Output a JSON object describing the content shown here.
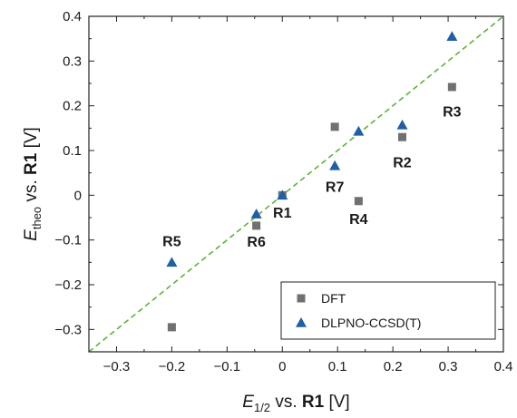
{
  "chart_data": {
    "type": "scatter",
    "title": "",
    "xlabel": {
      "main": "E",
      "sub": "1/2",
      "mid": " vs. ",
      "bold": "R1",
      "unit": " [V]"
    },
    "ylabel": {
      "main": "E",
      "sub": "theo",
      "mid": " vs. ",
      "bold": "R1",
      "unit": " [V]"
    },
    "xlim": [
      -0.35,
      0.4
    ],
    "ylim": [
      -0.35,
      0.4
    ],
    "x_ticks": [
      -0.3,
      -0.2,
      -0.1,
      0,
      0.1,
      0.2,
      0.3,
      0.4
    ],
    "x_tick_labels": [
      "−0.3",
      "−0.2",
      "−0.1",
      "0",
      "0.1",
      "0.2",
      "0.3",
      "0.4"
    ],
    "y_ticks": [
      -0.3,
      -0.2,
      -0.1,
      0,
      0.1,
      0.2,
      0.3,
      0.4
    ],
    "y_tick_labels": [
      "−0.3",
      "−0.2",
      "−0.1",
      "0",
      "0.1",
      "0.2",
      "0.3",
      "0.4"
    ],
    "grid": false,
    "legend_position": "bottom-right",
    "reference_line": {
      "from": [
        -0.35,
        -0.35
      ],
      "to": [
        0.4,
        0.4
      ],
      "color": "#5fb236",
      "style": "dashed"
    },
    "series": [
      {
        "name": "DFT",
        "marker": "square",
        "color": "#707070",
        "points": [
          {
            "x": 0,
            "y": 0
          },
          {
            "x": 0.217,
            "y": 0.13
          },
          {
            "x": 0.307,
            "y": 0.242
          },
          {
            "x": 0.138,
            "y": -0.013
          },
          {
            "x": -0.2,
            "y": -0.295
          },
          {
            "x": -0.047,
            "y": -0.068
          },
          {
            "x": 0.095,
            "y": 0.153
          }
        ]
      },
      {
        "name": "DLPNO-CCSD(T)",
        "marker": "triangle",
        "color": "#1f5fa8",
        "points": [
          {
            "x": 0,
            "y": 0
          },
          {
            "x": 0.217,
            "y": 0.157
          },
          {
            "x": 0.307,
            "y": 0.355
          },
          {
            "x": 0.138,
            "y": 0.143
          },
          {
            "x": -0.2,
            "y": -0.15
          },
          {
            "x": -0.047,
            "y": -0.042
          },
          {
            "x": 0.095,
            "y": 0.066
          }
        ]
      }
    ],
    "point_labels": [
      {
        "text": "R1",
        "x": 0,
        "y": -0.038
      },
      {
        "text": "R2",
        "x": 0.217,
        "y": 0.075
      },
      {
        "text": "R3",
        "x": 0.307,
        "y": 0.188
      },
      {
        "text": "R4",
        "x": 0.138,
        "y": -0.052
      },
      {
        "text": "R5",
        "x": -0.2,
        "y": -0.102
      },
      {
        "text": "R6",
        "x": -0.047,
        "y": -0.103
      },
      {
        "text": "R7",
        "x": 0.095,
        "y": 0.02
      }
    ]
  }
}
